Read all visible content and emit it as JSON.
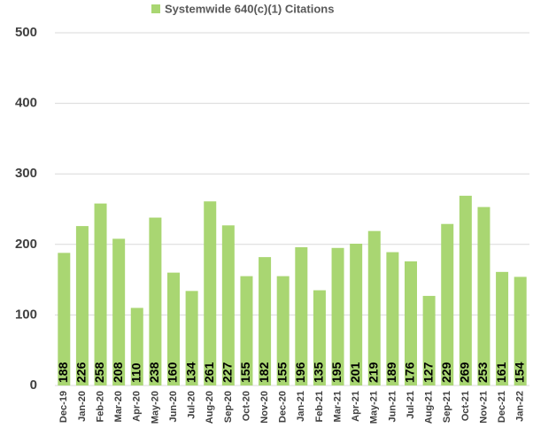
{
  "chart_data": {
    "type": "bar",
    "series": [
      {
        "name": "Systemwide 640(c)(1) Citations",
        "color": "#a9d672",
        "values": [
          188,
          226,
          258,
          208,
          110,
          238,
          160,
          134,
          261,
          227,
          155,
          182,
          155,
          196,
          135,
          195,
          201,
          219,
          189,
          176,
          127,
          229,
          269,
          253,
          161,
          154
        ]
      }
    ],
    "categories": [
      "Dec-19",
      "Jan-20",
      "Feb-20",
      "Mar-20",
      "Apr-20",
      "May-20",
      "Jun-20",
      "Jul-20",
      "Aug-20",
      "Sep-20",
      "Oct-20",
      "Nov-20",
      "Dec-20",
      "Jan-21",
      "Feb-21",
      "Mar-21",
      "Apr-21",
      "May-21",
      "Jun-21",
      "Jul-21",
      "Aug-21",
      "Sep-21",
      "Oct-21",
      "Nov-21",
      "Dec-21",
      "Jan-22"
    ],
    "ylim": [
      0,
      500
    ],
    "yticks": [
      0,
      100,
      200,
      300,
      400,
      500
    ],
    "grid": true,
    "legend": "top"
  }
}
